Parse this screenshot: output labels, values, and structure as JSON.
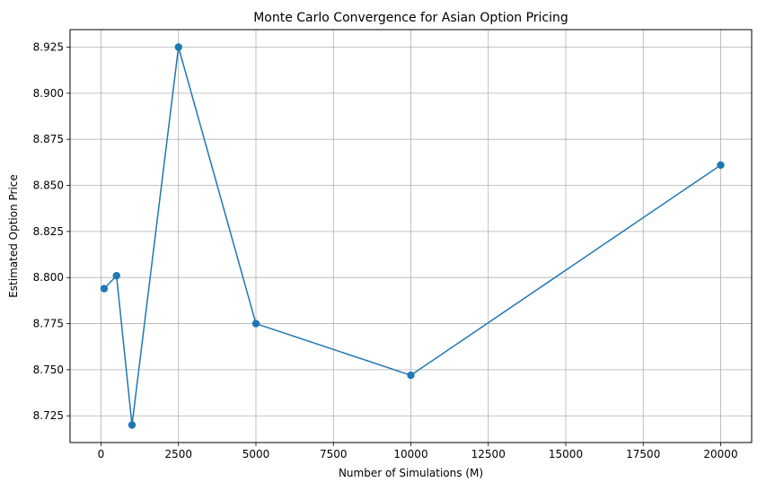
{
  "chart_data": {
    "type": "line",
    "title": "Monte Carlo Convergence for Asian Option Pricing",
    "xlabel": "Number of Simulations (M)",
    "ylabel": "Estimated Option Price",
    "xlim": [
      -1000,
      21000
    ],
    "ylim": [
      8.7105,
      8.9345
    ],
    "x_ticks": [
      0,
      2500,
      5000,
      7500,
      10000,
      12500,
      15000,
      17500,
      20000
    ],
    "y_ticks": [
      8.725,
      8.75,
      8.775,
      8.8,
      8.825,
      8.85,
      8.875,
      8.9,
      8.925
    ],
    "x_tick_labels": [
      "0",
      "2500",
      "5000",
      "7500",
      "10000",
      "12500",
      "15000",
      "17500",
      "20000"
    ],
    "y_tick_labels": [
      "8.725",
      "8.750",
      "8.775",
      "8.800",
      "8.825",
      "8.850",
      "8.875",
      "8.900",
      "8.925"
    ],
    "grid": true,
    "series": [
      {
        "color": "#1f77b4",
        "marker": "circle",
        "x": [
          100,
          500,
          1000,
          2500,
          5000,
          10000,
          20000
        ],
        "y": [
          8.794,
          8.801,
          8.72,
          8.925,
          8.775,
          8.747,
          8.861
        ]
      }
    ]
  }
}
